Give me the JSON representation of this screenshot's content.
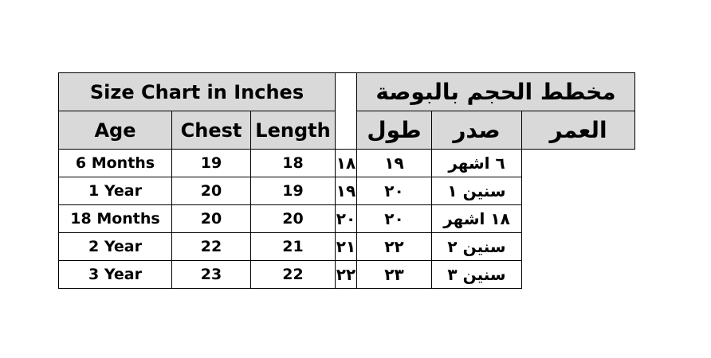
{
  "english": {
    "title": "Size Chart in Inches",
    "headers": [
      "Age",
      "Chest",
      "Length"
    ],
    "rows": [
      [
        "6 Months",
        "19",
        "18"
      ],
      [
        "1 Year",
        "20",
        "19"
      ],
      [
        "18 Months",
        "20",
        "20"
      ],
      [
        "2 Year",
        "22",
        "21"
      ],
      [
        "3 Year",
        "23",
        "22"
      ]
    ]
  },
  "arabic": {
    "title": "مخطط الحجم بالبوصة",
    "headers": [
      "طول",
      "صدر",
      "العمر"
    ],
    "rows": [
      [
        "١٨",
        "١٩",
        "٦ اشهر"
      ],
      [
        "١٩",
        "٢٠",
        "سنين ١"
      ],
      [
        "٢٠",
        "٢٠",
        "١٨ اشهر"
      ],
      [
        "٢١",
        "٢٢",
        "سنين ٢"
      ],
      [
        "٢٢",
        "٢٣",
        "سنين ٣"
      ]
    ]
  },
  "colors": {
    "header_bg": "#d9d9d9",
    "border": "#000000"
  }
}
